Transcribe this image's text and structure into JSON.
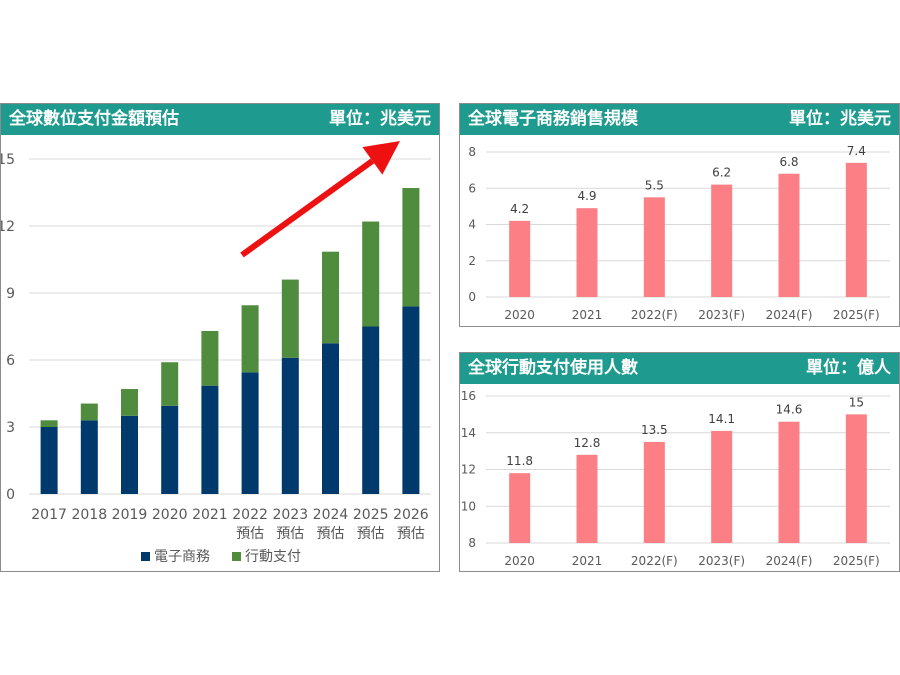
{
  "colors": {
    "header_bg": "#1f9a8e",
    "ecommerce": "#003a6c",
    "mobile": "#4f8c3e",
    "bar_pink": "#fb7f84",
    "arrow": "#ee1111",
    "grid": "#d9d9d9",
    "axis_text": "#595959"
  },
  "charts": {
    "left": {
      "title": "全球數位支付金額預估",
      "unit": "單位：兆美元"
    },
    "top_right": {
      "title": "全球電子商務銷售規模",
      "unit": "單位：兆美元"
    },
    "bottom_right": {
      "title": "全球行動支付使用人數",
      "unit": "單位：億人"
    }
  },
  "chart_data": [
    {
      "type": "bar",
      "stacked": true,
      "title": "全球數位支付金額預估",
      "unit_label": "單位：兆美元",
      "categories": [
        "2017",
        "2018",
        "2019",
        "2020",
        "2021",
        "2022\n預估",
        "2023\n預估",
        "2024\n預估",
        "2025\n預估",
        "2026\n預估"
      ],
      "series": [
        {
          "name": "電子商務",
          "color": "#003a6c",
          "values": [
            3.0,
            3.3,
            3.5,
            3.95,
            4.85,
            5.45,
            6.1,
            6.75,
            7.5,
            8.4
          ]
        },
        {
          "name": "行動支付",
          "color": "#4f8c3e",
          "values": [
            0.3,
            0.75,
            1.2,
            1.95,
            2.45,
            3.0,
            3.5,
            4.1,
            4.7,
            5.3
          ]
        }
      ],
      "ylim": [
        0,
        15
      ],
      "yticks": [
        0,
        3,
        6,
        9,
        12,
        15
      ],
      "grid": true,
      "legend": "bottom",
      "annotation": "upward red arrow"
    },
    {
      "type": "bar",
      "title": "全球電子商務銷售規模",
      "unit_label": "單位：兆美元",
      "categories": [
        "2020",
        "2021",
        "2022(F)",
        "2023(F)",
        "2024(F)",
        "2025(F)"
      ],
      "values": [
        4.2,
        4.9,
        5.5,
        6.2,
        6.8,
        7.4
      ],
      "data_labels": [
        "4.2",
        "4.9",
        "5.5",
        "6.2",
        "6.8",
        "7.4"
      ],
      "ylim": [
        0,
        8
      ],
      "yticks": [
        0,
        2,
        4,
        6,
        8
      ],
      "grid": true
    },
    {
      "type": "bar",
      "title": "全球行動支付使用人數",
      "unit_label": "單位：億人",
      "categories": [
        "2020",
        "2021",
        "2022(F)",
        "2023(F)",
        "2024(F)",
        "2025(F)"
      ],
      "values": [
        11.8,
        12.8,
        13.5,
        14.1,
        14.6,
        15
      ],
      "data_labels": [
        "11.8",
        "12.8",
        "13.5",
        "14.1",
        "14.6",
        "15"
      ],
      "ylim": [
        8,
        16
      ],
      "yticks": [
        8,
        10,
        12,
        14,
        16
      ],
      "grid": true
    }
  ]
}
